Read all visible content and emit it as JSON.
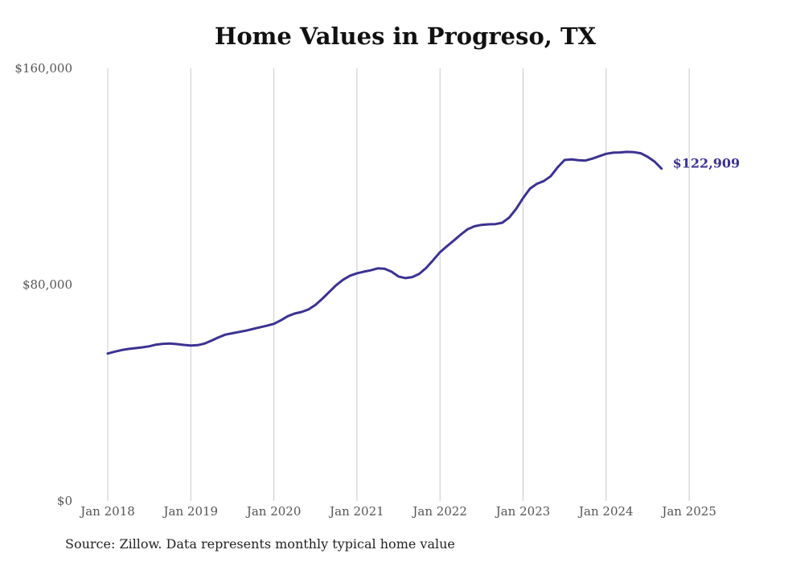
{
  "chart_data": {
    "type": "line",
    "title": "Home Values in Progreso, TX",
    "xlabel": "",
    "ylabel": "",
    "ylim": [
      0,
      160000
    ],
    "y_ticks": [
      "$0",
      "$80,000",
      "$160,000"
    ],
    "y_tick_values": [
      0,
      80000,
      160000
    ],
    "x_ticks": [
      "Jan 2018",
      "Jan 2019",
      "Jan 2020",
      "Jan 2021",
      "Jan 2022",
      "Jan 2023",
      "Jan 2024",
      "Jan 2025"
    ],
    "grid": "vertical",
    "series": [
      {
        "color": "#3c3291",
        "end_label": "$122,909",
        "points": [
          [
            "2018-01",
            54500
          ],
          [
            "2018-02",
            55200
          ],
          [
            "2018-03",
            55800
          ],
          [
            "2018-04",
            56200
          ],
          [
            "2018-05",
            56500
          ],
          [
            "2018-06",
            56800
          ],
          [
            "2018-07",
            57200
          ],
          [
            "2018-08",
            57800
          ],
          [
            "2018-09",
            58100
          ],
          [
            "2018-10",
            58200
          ],
          [
            "2018-11",
            58000
          ],
          [
            "2018-12",
            57700
          ],
          [
            "2019-01",
            57500
          ],
          [
            "2019-02",
            57600
          ],
          [
            "2019-03",
            58200
          ],
          [
            "2019-04",
            59300
          ],
          [
            "2019-05",
            60500
          ],
          [
            "2019-06",
            61500
          ],
          [
            "2019-07",
            62000
          ],
          [
            "2019-08",
            62500
          ],
          [
            "2019-09",
            63000
          ],
          [
            "2019-10",
            63600
          ],
          [
            "2019-11",
            64200
          ],
          [
            "2019-12",
            64800
          ],
          [
            "2020-01",
            65500
          ],
          [
            "2020-02",
            66800
          ],
          [
            "2020-03",
            68300
          ],
          [
            "2020-04",
            69300
          ],
          [
            "2020-05",
            69900
          ],
          [
            "2020-06",
            70800
          ],
          [
            "2020-07",
            72500
          ],
          [
            "2020-08",
            74800
          ],
          [
            "2020-09",
            77300
          ],
          [
            "2020-10",
            79800
          ],
          [
            "2020-11",
            81800
          ],
          [
            "2020-12",
            83300
          ],
          [
            "2021-01",
            84200
          ],
          [
            "2021-02",
            84800
          ],
          [
            "2021-03",
            85300
          ],
          [
            "2021-04",
            86000
          ],
          [
            "2021-05",
            85900
          ],
          [
            "2021-06",
            84800
          ],
          [
            "2021-07",
            83000
          ],
          [
            "2021-08",
            82400
          ],
          [
            "2021-09",
            82800
          ],
          [
            "2021-10",
            84000
          ],
          [
            "2021-11",
            86200
          ],
          [
            "2021-12",
            89000
          ],
          [
            "2022-01",
            92000
          ],
          [
            "2022-02",
            94200
          ],
          [
            "2022-03",
            96300
          ],
          [
            "2022-04",
            98500
          ],
          [
            "2022-05",
            100500
          ],
          [
            "2022-06",
            101600
          ],
          [
            "2022-07",
            102100
          ],
          [
            "2022-08",
            102300
          ],
          [
            "2022-09",
            102400
          ],
          [
            "2022-10",
            102900
          ],
          [
            "2022-11",
            104800
          ],
          [
            "2022-12",
            108000
          ],
          [
            "2023-01",
            112000
          ],
          [
            "2023-02",
            115500
          ],
          [
            "2023-03",
            117300
          ],
          [
            "2023-04",
            118300
          ],
          [
            "2023-05",
            120100
          ],
          [
            "2023-06",
            123400
          ],
          [
            "2023-07",
            126100
          ],
          [
            "2023-08",
            126300
          ],
          [
            "2023-09",
            126000
          ],
          [
            "2023-10",
            125900
          ],
          [
            "2023-11",
            126600
          ],
          [
            "2023-12",
            127500
          ],
          [
            "2024-01",
            128400
          ],
          [
            "2024-02",
            128800
          ],
          [
            "2024-03",
            128900
          ],
          [
            "2024-04",
            129100
          ],
          [
            "2024-05",
            129000
          ],
          [
            "2024-06",
            128600
          ],
          [
            "2024-07",
            127300
          ],
          [
            "2024-08",
            125500
          ],
          [
            "2024-09",
            122909
          ]
        ]
      }
    ]
  },
  "source_note": "Source: Zillow. Data represents monthly typical home value"
}
